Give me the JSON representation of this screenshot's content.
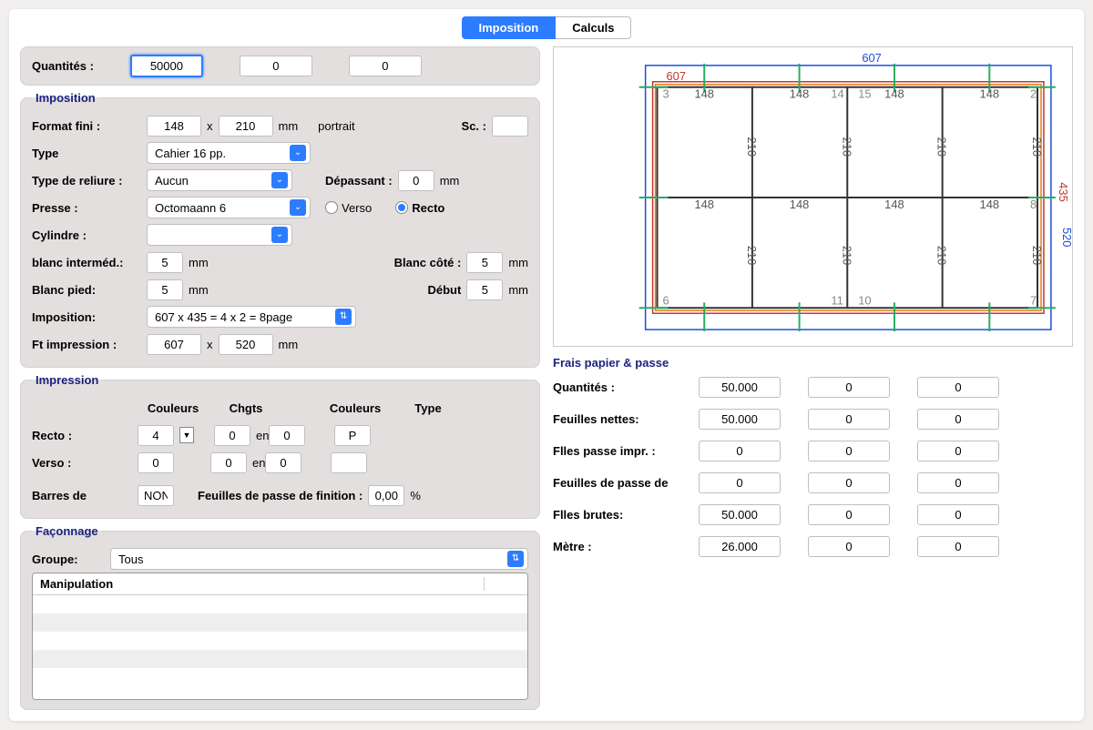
{
  "tabs": {
    "imposition": "Imposition",
    "calculs": "Calculs"
  },
  "quantities_label": "Quantités :",
  "quantities": [
    "50000",
    "0",
    "0"
  ],
  "imposition_section": {
    "legend": "Imposition",
    "format_fini_label": "Format fini :",
    "format_w": "148",
    "format_x": "x",
    "format_h": "210",
    "format_unit": "mm",
    "orientation": "portrait",
    "sc_label": "Sc. :",
    "sc_value": "",
    "type_label": "Type",
    "type_value": "Cahier 16 pp.",
    "reliure_label": "Type de reliure :",
    "reliure_value": "Aucun",
    "depassant_label": "Dépassant :",
    "depassant_value": "0",
    "mm": "mm",
    "presse_label": "Presse :",
    "presse_value": "Octomaann 6",
    "verso_label": "Verso",
    "recto_label": "Recto",
    "cylindre_label": "Cylindre :",
    "cylindre_value": "",
    "blanc_intermed_label": "blanc interméd.:",
    "blanc_intermed_value": "5",
    "blanc_cote_label": "Blanc côté :",
    "blanc_cote_value": "5",
    "blanc_pied_label": "Blanc pied:",
    "blanc_pied_value": "5",
    "debut_label": "Début",
    "debut_value": "5",
    "imposition_label": "Imposition:",
    "imposition_value": "607 x 435 = 4 x 2 = 8page",
    "ft_impr_label": "Ft impression :",
    "ft_w": "607",
    "ft_h": "520"
  },
  "impression_section": {
    "legend": "Impression",
    "col_couleurs": "Couleurs",
    "col_chgts": "Chgts",
    "col_en": "en",
    "col_type": "Type",
    "recto_label": "Recto :",
    "recto_couleurs": "4",
    "recto_chgts": "0",
    "recto_en": "0",
    "recto_type": "P",
    "verso_label": "Verso :",
    "verso_couleurs": "0",
    "verso_chgts": "0",
    "verso_en": "0",
    "verso_type": "",
    "barres_label": "Barres de",
    "barres_value": "NON",
    "feuilles_passe_label": "Feuilles de passe de finition :",
    "feuilles_passe_value": "0,00",
    "percent": "%"
  },
  "faconnage_section": {
    "legend": "Façonnage",
    "groupe_label": "Groupe:",
    "groupe_value": "Tous",
    "table_header": "Manipulation"
  },
  "preview": {
    "top_dim_blue": "607",
    "top_dim_red": "607",
    "right_dim_red": "435",
    "right_dim_blue": "520",
    "cell_w": "148",
    "cell_h": "210",
    "corner_labels": {
      "tl": "3",
      "tr": "2",
      "tm1": "14",
      "tm2": "15",
      "bl": "6",
      "br": "7",
      "bm1": "11",
      "bm2": "10",
      "mr": "8"
    },
    "colors": {
      "blue": "#1a4fd6",
      "red": "#c0392b",
      "orange": "#e67e22",
      "grid": "#333333",
      "green": "#27ae60",
      "dimtext": "#555555"
    }
  },
  "paper_section": {
    "legend": "Frais papier & passe",
    "rows": [
      {
        "label": "Quantités :",
        "vals": [
          "50.000",
          "0",
          "0"
        ]
      },
      {
        "label": "Feuilles nettes:",
        "vals": [
          "50.000",
          "0",
          "0"
        ]
      },
      {
        "label": "Flles passe impr. :",
        "vals": [
          "0",
          "0",
          "0"
        ]
      },
      {
        "label": "Feuilles de passe de",
        "vals": [
          "0",
          "0",
          "0"
        ]
      },
      {
        "label": "Flles brutes:",
        "vals": [
          "50.000",
          "0",
          "0"
        ]
      },
      {
        "label": "Mètre :",
        "vals": [
          "26.000",
          "0",
          "0"
        ]
      }
    ]
  }
}
